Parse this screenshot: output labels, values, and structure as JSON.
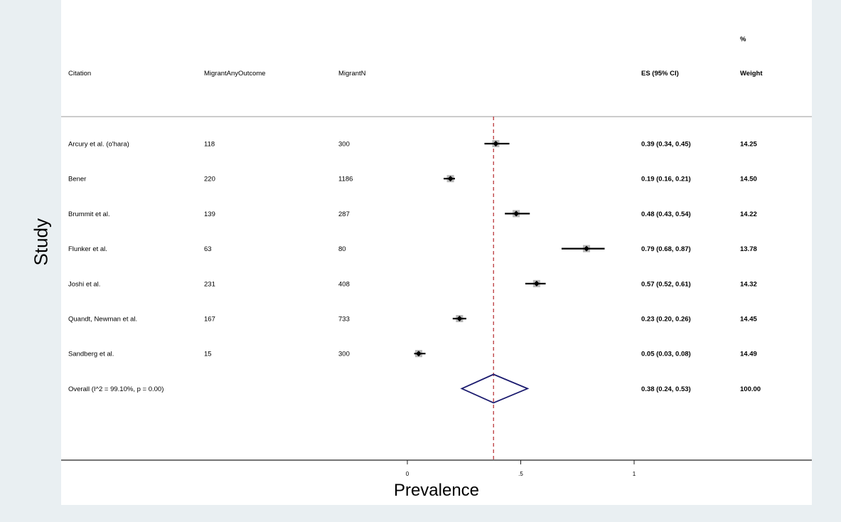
{
  "chart_data": {
    "type": "forest",
    "ylabel": "Study",
    "xlabel": "Prevalence",
    "xticks": [
      {
        "value": 0,
        "label": "0"
      },
      {
        "value": 0.5,
        "label": ".5"
      },
      {
        "value": 1,
        "label": "1"
      }
    ],
    "xlim": [
      -1.53,
      1.78
    ],
    "headers": {
      "citation": "Citation",
      "events": "MigrantAnyOutcome",
      "total": "MigrantN",
      "es": "ES (95% CI)",
      "weight_top": "%",
      "weight": "Weight"
    },
    "studies": [
      {
        "citation": "Arcury et al. (o'hara)",
        "events": "118",
        "total": "300",
        "es": 0.39,
        "lo": 0.34,
        "hi": 0.45,
        "es_text": "0.39 (0.34, 0.45)",
        "weight": "14.25"
      },
      {
        "citation": "Bener",
        "events": "220",
        "total": "1186",
        "es": 0.19,
        "lo": 0.16,
        "hi": 0.21,
        "es_text": "0.19 (0.16, 0.21)",
        "weight": "14.50"
      },
      {
        "citation": "Brummit et al.",
        "events": "139",
        "total": "287",
        "es": 0.48,
        "lo": 0.43,
        "hi": 0.54,
        "es_text": "0.48 (0.43, 0.54)",
        "weight": "14.22"
      },
      {
        "citation": "Flunker et al.",
        "events": "63",
        "total": "80",
        "es": 0.79,
        "lo": 0.68,
        "hi": 0.87,
        "es_text": "0.79 (0.68, 0.87)",
        "weight": "13.78"
      },
      {
        "citation": "Joshi et al.",
        "events": "231",
        "total": "408",
        "es": 0.57,
        "lo": 0.52,
        "hi": 0.61,
        "es_text": "0.57 (0.52, 0.61)",
        "weight": "14.32"
      },
      {
        "citation": "Quandt, Newman et al.",
        "events": "167",
        "total": "733",
        "es": 0.23,
        "lo": 0.2,
        "hi": 0.26,
        "es_text": "0.23 (0.20, 0.26)",
        "weight": "14.45"
      },
      {
        "citation": "Sandberg et al.",
        "events": "15",
        "total": "300",
        "es": 0.05,
        "lo": 0.03,
        "hi": 0.08,
        "es_text": "0.05 (0.03, 0.08)",
        "weight": "14.49"
      }
    ],
    "overall": {
      "citation": "Overall  (I^2 = 99.10%, p = 0.00)",
      "es": 0.38,
      "lo": 0.24,
      "hi": 0.53,
      "es_text": "0.38 (0.24, 0.53)",
      "weight": "100.00"
    },
    "reference_line": 0.38,
    "colors": {
      "ci": "#000000",
      "box": "#b7b7b7",
      "diamond": "#1a1a6e",
      "refline": "#b5272b"
    }
  }
}
